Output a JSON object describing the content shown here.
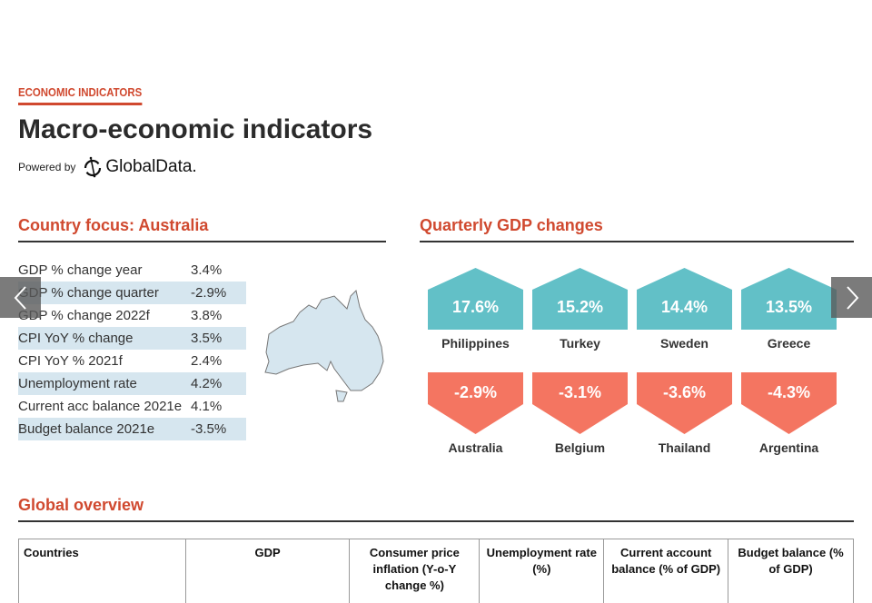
{
  "header": {
    "kicker": "ECONOMIC INDICATORS",
    "title": "Macro-economic indicators",
    "powered_by": "Powered by",
    "logo_text": "GlobalData."
  },
  "country_focus": {
    "title": "Country focus: Australia",
    "rows": [
      {
        "label": "GDP % change year",
        "value": "3.4%"
      },
      {
        "label": "GDP % change quarter",
        "value": "-2.9%"
      },
      {
        "label": "GDP % change 2022f",
        "value": "3.8%"
      },
      {
        "label": "CPI YoY % change",
        "value": "3.5%"
      },
      {
        "label": "CPI YoY % 2021f",
        "value": "2.4%"
      },
      {
        "label": "Unemployment rate",
        "value": "4.2%"
      },
      {
        "label": "Current acc balance 2021e",
        "value": "4.1%"
      },
      {
        "label": "Budget balance 2021e",
        "value": "-3.5%"
      }
    ],
    "map_icon": "australia-map"
  },
  "quarterly": {
    "title": "Quarterly GDP changes",
    "top": [
      {
        "value": "17.6%",
        "country": "Philippines"
      },
      {
        "value": "15.2%",
        "country": "Turkey"
      },
      {
        "value": "14.4%",
        "country": "Sweden"
      },
      {
        "value": "13.5%",
        "country": "Greece"
      }
    ],
    "bottom": [
      {
        "value": "-2.9%",
        "country": "Australia"
      },
      {
        "value": "-3.1%",
        "country": "Belgium"
      },
      {
        "value": "-3.6%",
        "country": "Thailand"
      },
      {
        "value": "-4.3%",
        "country": "Argentina"
      }
    ],
    "colors": {
      "positive": "#62c0c7",
      "negative": "#f47561"
    }
  },
  "global": {
    "title": "Global overview",
    "columns": [
      "Countries",
      "GDP",
      "Consumer price inflation (Y-o-Y change %)",
      "Unemployment rate (%)",
      "Current account balance (% of GDP)",
      "Budget balance (% of GDP)"
    ]
  },
  "nav": {
    "prev_icon": "chevron-left-icon",
    "next_icon": "chevron-right-icon"
  },
  "colors": {
    "accent": "#d0492f",
    "row_shade": "#d6e6ef"
  }
}
